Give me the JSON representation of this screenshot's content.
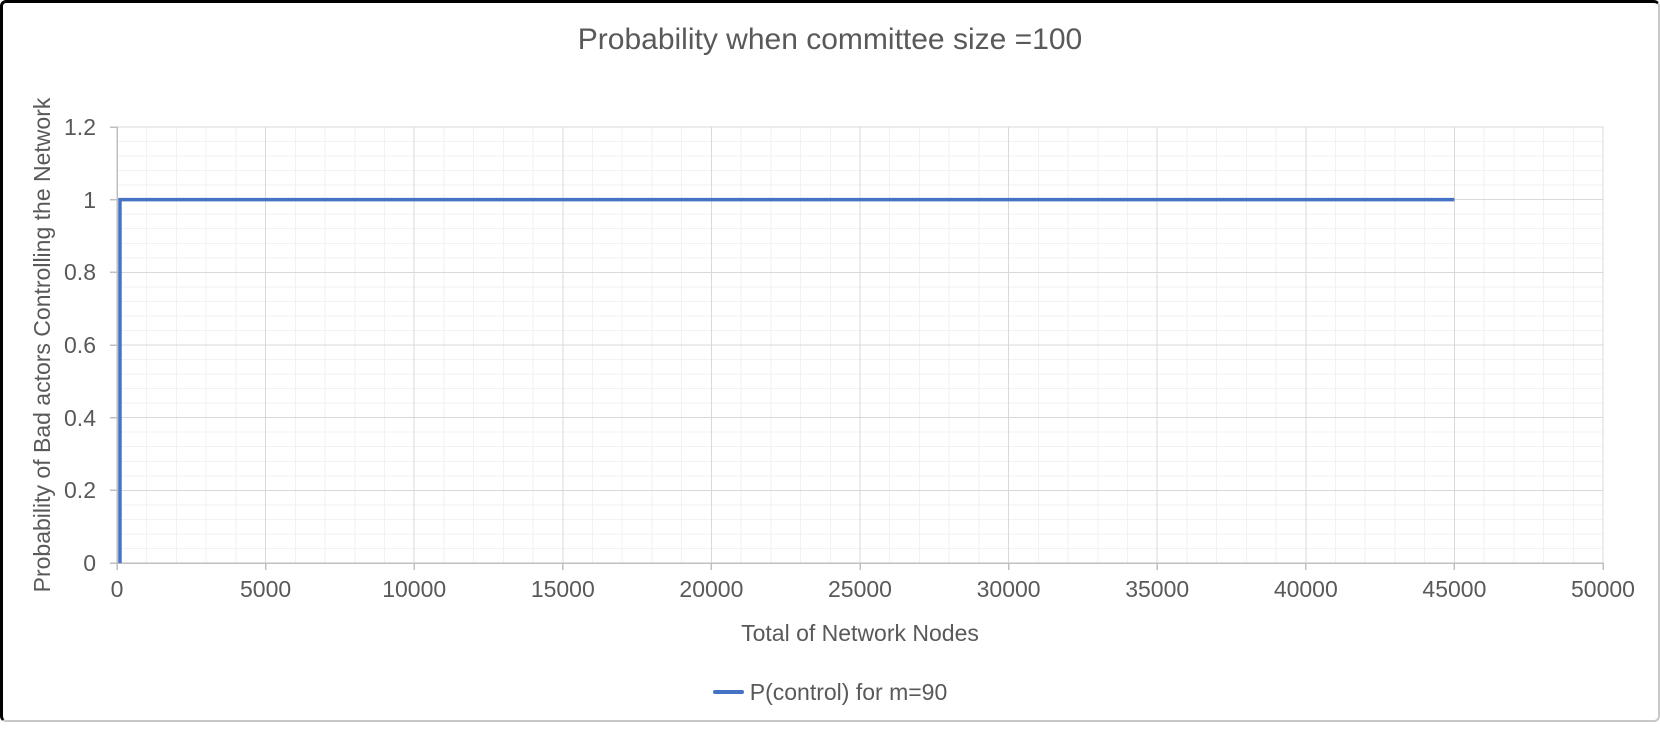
{
  "chart_data": {
    "type": "line",
    "title": "Probability when committee size =100",
    "xlabel": "Total of Network Nodes",
    "ylabel": "Probability of Bad actors Controlling the Network",
    "xlim": [
      0,
      50000
    ],
    "ylim": [
      0,
      1.2
    ],
    "x_ticks": [
      "0",
      "5000",
      "10000",
      "15000",
      "20000",
      "25000",
      "30000",
      "35000",
      "40000",
      "45000",
      "50000"
    ],
    "x_tick_values": [
      0,
      5000,
      10000,
      15000,
      20000,
      25000,
      30000,
      35000,
      40000,
      45000,
      50000
    ],
    "y_ticks": [
      "0",
      "0.2",
      "0.4",
      "0.6",
      "0.8",
      "1",
      "1.2"
    ],
    "y_tick_values": [
      0,
      0.2,
      0.4,
      0.6,
      0.8,
      1,
      1.2
    ],
    "x_minor_step": 1000,
    "y_minor_step": 0.04,
    "grid": "major+minor",
    "legend_position": "bottom-center",
    "series": [
      {
        "name": "P(control) for m=90",
        "color": "#4472C4",
        "points": [
          [
            100,
            0
          ],
          [
            100,
            1
          ],
          [
            45000,
            1
          ]
        ]
      }
    ]
  },
  "colors": {
    "series_line": "#4472C4",
    "text": "#595959",
    "axis_line": "#BFBFBF",
    "grid_major": "#D9D9D9",
    "grid_minor": "#F2F2F2",
    "frame_border_dark": "#000000",
    "frame_border_light": "#C8C8C8"
  }
}
